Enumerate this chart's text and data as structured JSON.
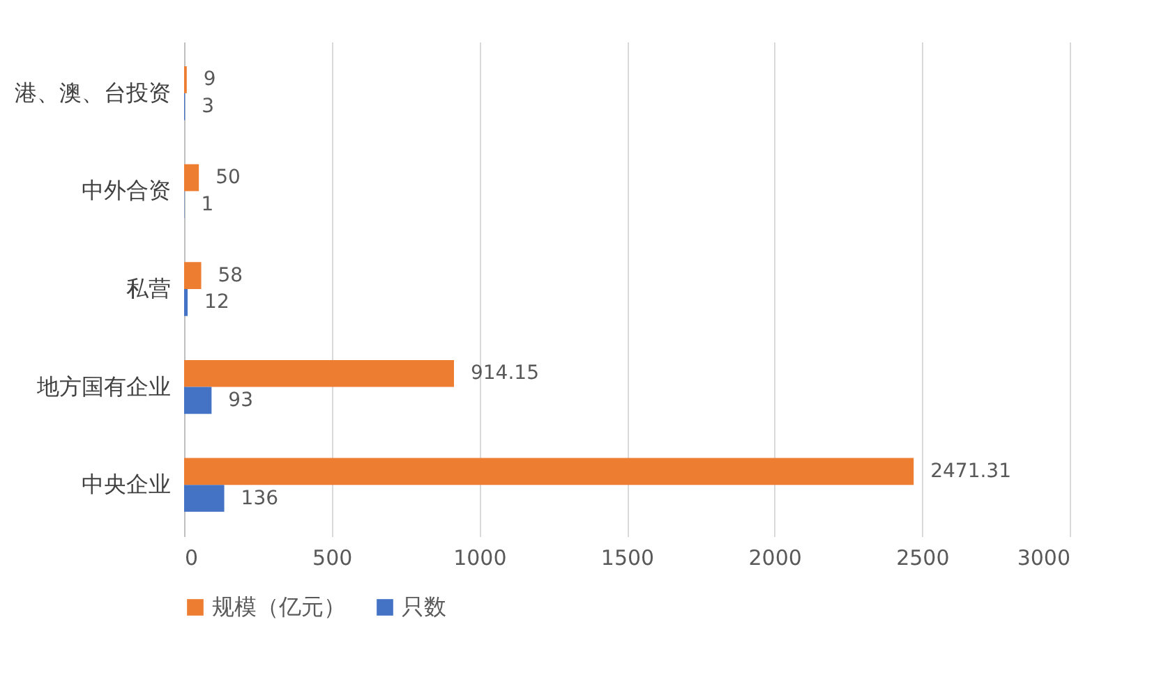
{
  "chart_data": {
    "type": "bar",
    "orientation": "horizontal",
    "categories": [
      "港、澳、台投资",
      "中外合资",
      "私营",
      "地方国有企业",
      "中央企业"
    ],
    "series": [
      {
        "name": "规模（亿元）",
        "color": "#ed7d31",
        "values": [
          9,
          50,
          58,
          914.15,
          2471.31
        ]
      },
      {
        "name": "只数",
        "color": "#4472c4",
        "values": [
          3,
          1,
          12,
          93,
          136
        ]
      }
    ],
    "xlim": [
      0,
      3000
    ],
    "xticks": [
      0,
      500,
      1000,
      1500,
      2000,
      2500,
      3000
    ],
    "grid": "x",
    "legend": "bottom",
    "data_labels": true
  }
}
